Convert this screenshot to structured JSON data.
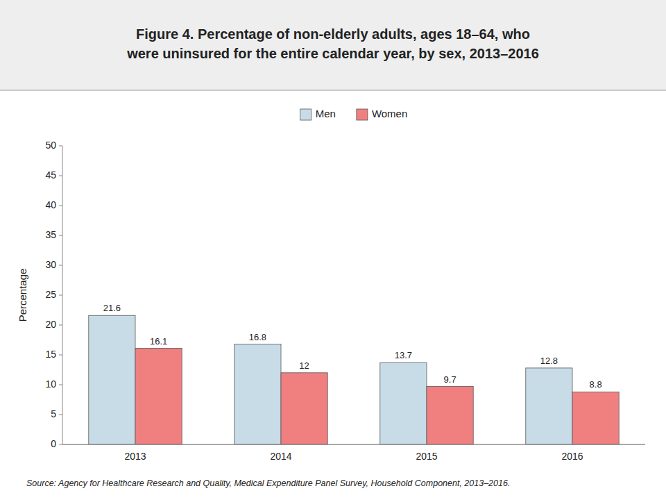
{
  "chart_data": {
    "type": "bar",
    "title": [
      "Figure 4. Percentage of non-elderly adults, ages 18–64, who",
      "were uninsured for the entire calendar year, by sex, 2013–2016"
    ],
    "source": "Source: Agency for Healthcare Research and Quality, Medical Expenditure Panel Survey, Household Component, 2013–2016.",
    "categories": [
      "2013",
      "2014",
      "2015",
      "2016"
    ],
    "series": [
      {
        "name": "Men",
        "color": "#c8dce8",
        "values": [
          21.6,
          16.8,
          13.7,
          12.8
        ]
      },
      {
        "name": "Women",
        "color": "#f08080",
        "values": [
          16.1,
          12.0,
          9.7,
          8.8
        ]
      }
    ],
    "y_label": "Percentage",
    "ylim": [
      0,
      50
    ],
    "yticks": [
      0,
      5,
      10,
      15,
      20,
      25,
      30,
      35,
      40,
      45,
      50
    ],
    "grid": false,
    "legend": "top",
    "data_labels": true
  }
}
